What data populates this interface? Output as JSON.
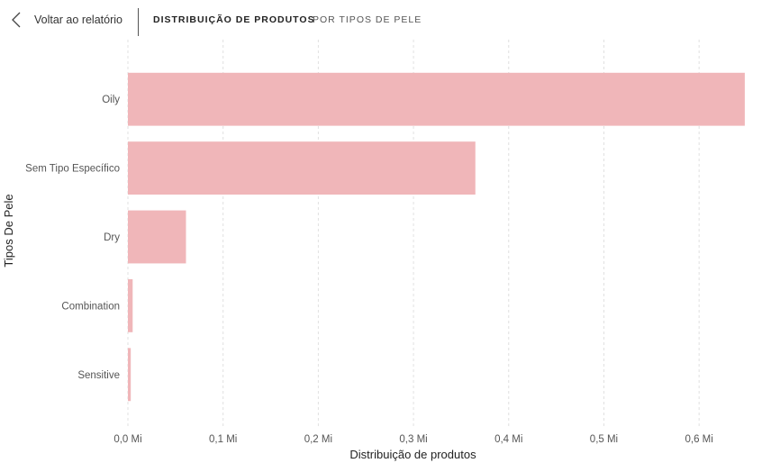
{
  "header": {
    "back_label": "Voltar ao relatório",
    "active_label": "DISTRIBUIÇÃO DE PRODUTOS",
    "sub_label": "POR TIPOS DE PELE"
  },
  "icons": {
    "back": "chevron-left-icon"
  },
  "chart_data": {
    "type": "bar",
    "orientation": "horizontal",
    "categories": [
      "Oily",
      "Sem Tipo Específico",
      "Dry",
      "Combination",
      "Sensitive"
    ],
    "values": [
      0.648,
      0.365,
      0.061,
      0.005,
      0.003
    ],
    "value_unit": "Mi",
    "xlabel": "Distribuição de produtos",
    "ylabel": "Tipos De Pele",
    "xlim": [
      0,
      0.65
    ],
    "xticks": [
      0,
      0.1,
      0.2,
      0.3,
      0.4,
      0.5,
      0.6
    ],
    "xtick_labels": [
      "0,0 Mi",
      "0,1 Mi",
      "0,2 Mi",
      "0,3 Mi",
      "0,4 Mi",
      "0,5 Mi",
      "0,6 Mi"
    ],
    "grid": "vertical-dashed",
    "bar_color": "#F0B6B9",
    "grid_color": "#E0E0E0"
  }
}
